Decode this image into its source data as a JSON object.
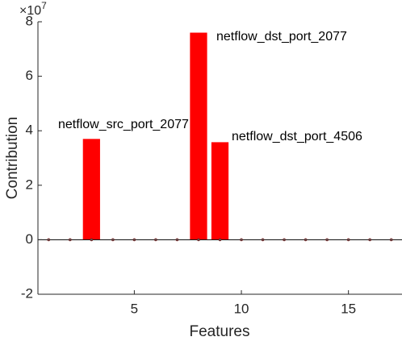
{
  "chart_data": {
    "type": "bar",
    "xlabel": "Features",
    "ylabel": "Contribution",
    "y_multiplier": {
      "base": "×10",
      "exponent": "7"
    },
    "x": [
      1,
      2,
      3,
      4,
      5,
      6,
      7,
      8,
      9,
      10,
      11,
      12,
      13,
      14,
      15,
      16,
      17
    ],
    "values": [
      0,
      0,
      3.7,
      0,
      0,
      0,
      0,
      7.6,
      3.58,
      0,
      0,
      0,
      0,
      0,
      0,
      0,
      0
    ],
    "color": "#ff0000",
    "xlim": [
      0.5,
      17.5
    ],
    "xticks": [
      5,
      10,
      15
    ],
    "ylim": [
      -2,
      8
    ],
    "yticks": [
      -2,
      0,
      2,
      4,
      6,
      8
    ],
    "grid": false,
    "annotations": [
      "netflow_src_port_2077",
      "netflow_dst_port_2077",
      "netflow_dst_port_4506"
    ]
  }
}
